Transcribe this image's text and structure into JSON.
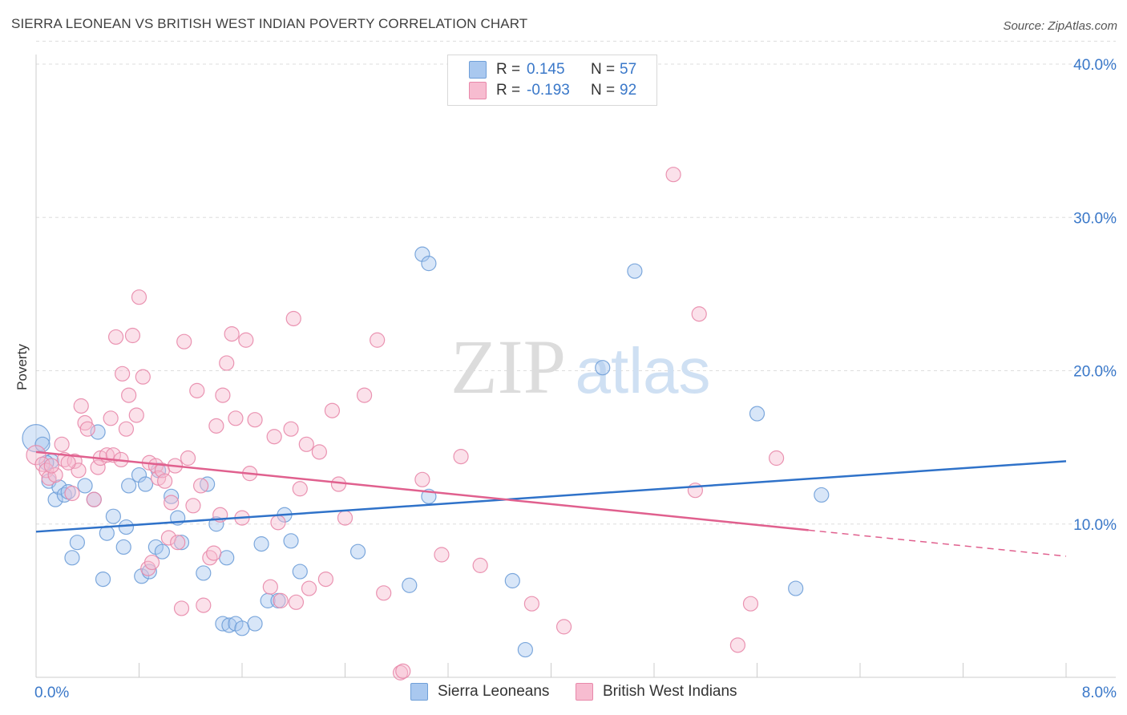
{
  "header": {
    "title": "SIERRA LEONEAN VS BRITISH WEST INDIAN POVERTY CORRELATION CHART",
    "source": "Source: ZipAtlas.com"
  },
  "watermark": {
    "zip": "ZIP",
    "atlas": "atlas"
  },
  "legend": {
    "rows": [
      {
        "r_label": "R =",
        "r_value": "0.145",
        "n_label": "N =",
        "n_value": "57",
        "color": "#a9c8ef",
        "border": "#6f9fd8"
      },
      {
        "r_label": "R =",
        "r_value": "-0.193",
        "n_label": "N =",
        "n_value": "92",
        "color": "#f7bcd0",
        "border": "#e888aa"
      }
    ]
  },
  "bottom_legend": {
    "series1": "Sierra Leoneans",
    "series2": "British West Indians"
  },
  "chart_data": {
    "type": "scatter",
    "title": "SIERRA LEONEAN VS BRITISH WEST INDIAN POVERTY CORRELATION CHART",
    "xlabel": "",
    "ylabel": "Poverty",
    "xlim": [
      0,
      8
    ],
    "ylim": [
      0,
      40
    ],
    "x_tick_labels": [
      "0.0%",
      "8.0%"
    ],
    "y_tick_labels": [
      "10.0%",
      "20.0%",
      "30.0%",
      "40.0%"
    ],
    "y_ticks": [
      10,
      20,
      30,
      40
    ],
    "grid": true,
    "series": [
      {
        "name": "Sierra Leoneans",
        "color": "#6f9fd8",
        "fill": "#a9c8ef",
        "trend": {
          "x": [
            0,
            8
          ],
          "y": [
            9.5,
            14.1
          ]
        },
        "points": [
          [
            0.0,
            15.6
          ],
          [
            0.05,
            15.2
          ],
          [
            0.1,
            12.8
          ],
          [
            0.12,
            14.1
          ],
          [
            0.15,
            11.6
          ],
          [
            0.18,
            12.4
          ],
          [
            0.22,
            11.9
          ],
          [
            0.25,
            12.1
          ],
          [
            0.28,
            7.8
          ],
          [
            0.32,
            8.8
          ],
          [
            0.38,
            12.5
          ],
          [
            0.45,
            11.6
          ],
          [
            0.48,
            16.0
          ],
          [
            0.52,
            6.4
          ],
          [
            0.55,
            9.4
          ],
          [
            0.6,
            10.5
          ],
          [
            0.68,
            8.5
          ],
          [
            0.7,
            9.8
          ],
          [
            0.72,
            12.5
          ],
          [
            0.8,
            13.2
          ],
          [
            0.82,
            6.6
          ],
          [
            0.85,
            12.6
          ],
          [
            0.88,
            6.9
          ],
          [
            0.93,
            8.5
          ],
          [
            0.95,
            13.5
          ],
          [
            0.98,
            8.2
          ],
          [
            1.05,
            11.8
          ],
          [
            1.1,
            10.4
          ],
          [
            1.13,
            8.8
          ],
          [
            1.3,
            6.8
          ],
          [
            1.33,
            12.6
          ],
          [
            1.4,
            10.0
          ],
          [
            1.45,
            3.5
          ],
          [
            1.48,
            7.8
          ],
          [
            1.5,
            3.4
          ],
          [
            1.55,
            3.5
          ],
          [
            1.6,
            3.2
          ],
          [
            1.7,
            3.5
          ],
          [
            1.75,
            8.7
          ],
          [
            1.8,
            5.0
          ],
          [
            1.88,
            5.0
          ],
          [
            1.93,
            10.6
          ],
          [
            1.98,
            8.9
          ],
          [
            2.05,
            6.9
          ],
          [
            2.5,
            8.2
          ],
          [
            2.9,
            6.0
          ],
          [
            3.0,
            27.6
          ],
          [
            3.05,
            27.0
          ],
          [
            3.05,
            11.8
          ],
          [
            3.7,
            6.3
          ],
          [
            3.8,
            1.8
          ],
          [
            4.4,
            20.2
          ],
          [
            4.65,
            26.5
          ],
          [
            5.6,
            17.2
          ],
          [
            5.9,
            5.8
          ],
          [
            6.1,
            11.9
          ],
          [
            0.08,
            14.0
          ]
        ]
      },
      {
        "name": "British West Indians",
        "color": "#e888aa",
        "fill": "#f7bcd0",
        "trend": {
          "x": [
            0,
            6.0
          ],
          "y": [
            14.7,
            9.6
          ]
        },
        "trend_dashed": {
          "x": [
            6.0,
            8
          ],
          "y": [
            9.6,
            7.9
          ]
        },
        "points": [
          [
            0.0,
            14.5
          ],
          [
            0.05,
            13.9
          ],
          [
            0.08,
            13.5
          ],
          [
            0.1,
            13.0
          ],
          [
            0.15,
            13.2
          ],
          [
            0.2,
            15.2
          ],
          [
            0.22,
            14.2
          ],
          [
            0.28,
            12.0
          ],
          [
            0.3,
            14.1
          ],
          [
            0.33,
            13.5
          ],
          [
            0.35,
            17.7
          ],
          [
            0.38,
            16.6
          ],
          [
            0.4,
            16.2
          ],
          [
            0.45,
            11.6
          ],
          [
            0.48,
            13.7
          ],
          [
            0.5,
            14.3
          ],
          [
            0.55,
            14.5
          ],
          [
            0.58,
            16.9
          ],
          [
            0.6,
            14.5
          ],
          [
            0.62,
            22.2
          ],
          [
            0.66,
            14.2
          ],
          [
            0.67,
            19.8
          ],
          [
            0.7,
            16.2
          ],
          [
            0.72,
            18.4
          ],
          [
            0.75,
            22.3
          ],
          [
            0.78,
            17.1
          ],
          [
            0.8,
            24.8
          ],
          [
            0.83,
            19.6
          ],
          [
            0.87,
            7.1
          ],
          [
            0.88,
            14.0
          ],
          [
            0.9,
            7.5
          ],
          [
            0.93,
            13.8
          ],
          [
            0.95,
            13.0
          ],
          [
            0.98,
            13.5
          ],
          [
            1.0,
            12.8
          ],
          [
            1.03,
            9.1
          ],
          [
            1.05,
            11.4
          ],
          [
            1.08,
            13.8
          ],
          [
            1.1,
            8.8
          ],
          [
            1.13,
            4.5
          ],
          [
            1.15,
            21.9
          ],
          [
            1.18,
            14.3
          ],
          [
            1.22,
            11.2
          ],
          [
            1.25,
            18.7
          ],
          [
            1.28,
            12.5
          ],
          [
            1.3,
            4.7
          ],
          [
            1.35,
            7.8
          ],
          [
            1.38,
            8.1
          ],
          [
            1.4,
            16.4
          ],
          [
            1.43,
            10.6
          ],
          [
            1.45,
            18.4
          ],
          [
            1.48,
            20.5
          ],
          [
            1.52,
            22.4
          ],
          [
            1.55,
            16.9
          ],
          [
            1.6,
            10.4
          ],
          [
            1.63,
            22.0
          ],
          [
            1.66,
            13.3
          ],
          [
            1.7,
            16.8
          ],
          [
            1.82,
            5.9
          ],
          [
            1.85,
            15.7
          ],
          [
            1.88,
            10.1
          ],
          [
            1.9,
            5.0
          ],
          [
            1.98,
            16.2
          ],
          [
            2.0,
            23.4
          ],
          [
            2.02,
            4.9
          ],
          [
            2.05,
            12.3
          ],
          [
            2.1,
            15.2
          ],
          [
            2.12,
            5.8
          ],
          [
            2.2,
            14.7
          ],
          [
            2.25,
            6.4
          ],
          [
            2.3,
            17.4
          ],
          [
            2.35,
            12.6
          ],
          [
            2.4,
            10.4
          ],
          [
            2.55,
            18.4
          ],
          [
            2.65,
            22.0
          ],
          [
            2.7,
            5.5
          ],
          [
            2.83,
            0.3
          ],
          [
            2.85,
            0.4
          ],
          [
            3.0,
            12.9
          ],
          [
            3.15,
            8.0
          ],
          [
            3.3,
            14.4
          ],
          [
            3.45,
            7.3
          ],
          [
            3.85,
            4.8
          ],
          [
            4.1,
            3.3
          ],
          [
            4.95,
            32.8
          ],
          [
            5.12,
            12.2
          ],
          [
            5.15,
            23.7
          ],
          [
            5.45,
            2.1
          ],
          [
            5.55,
            4.8
          ],
          [
            5.75,
            14.3
          ],
          [
            0.12,
            13.8
          ],
          [
            0.25,
            14.0
          ]
        ]
      }
    ]
  }
}
